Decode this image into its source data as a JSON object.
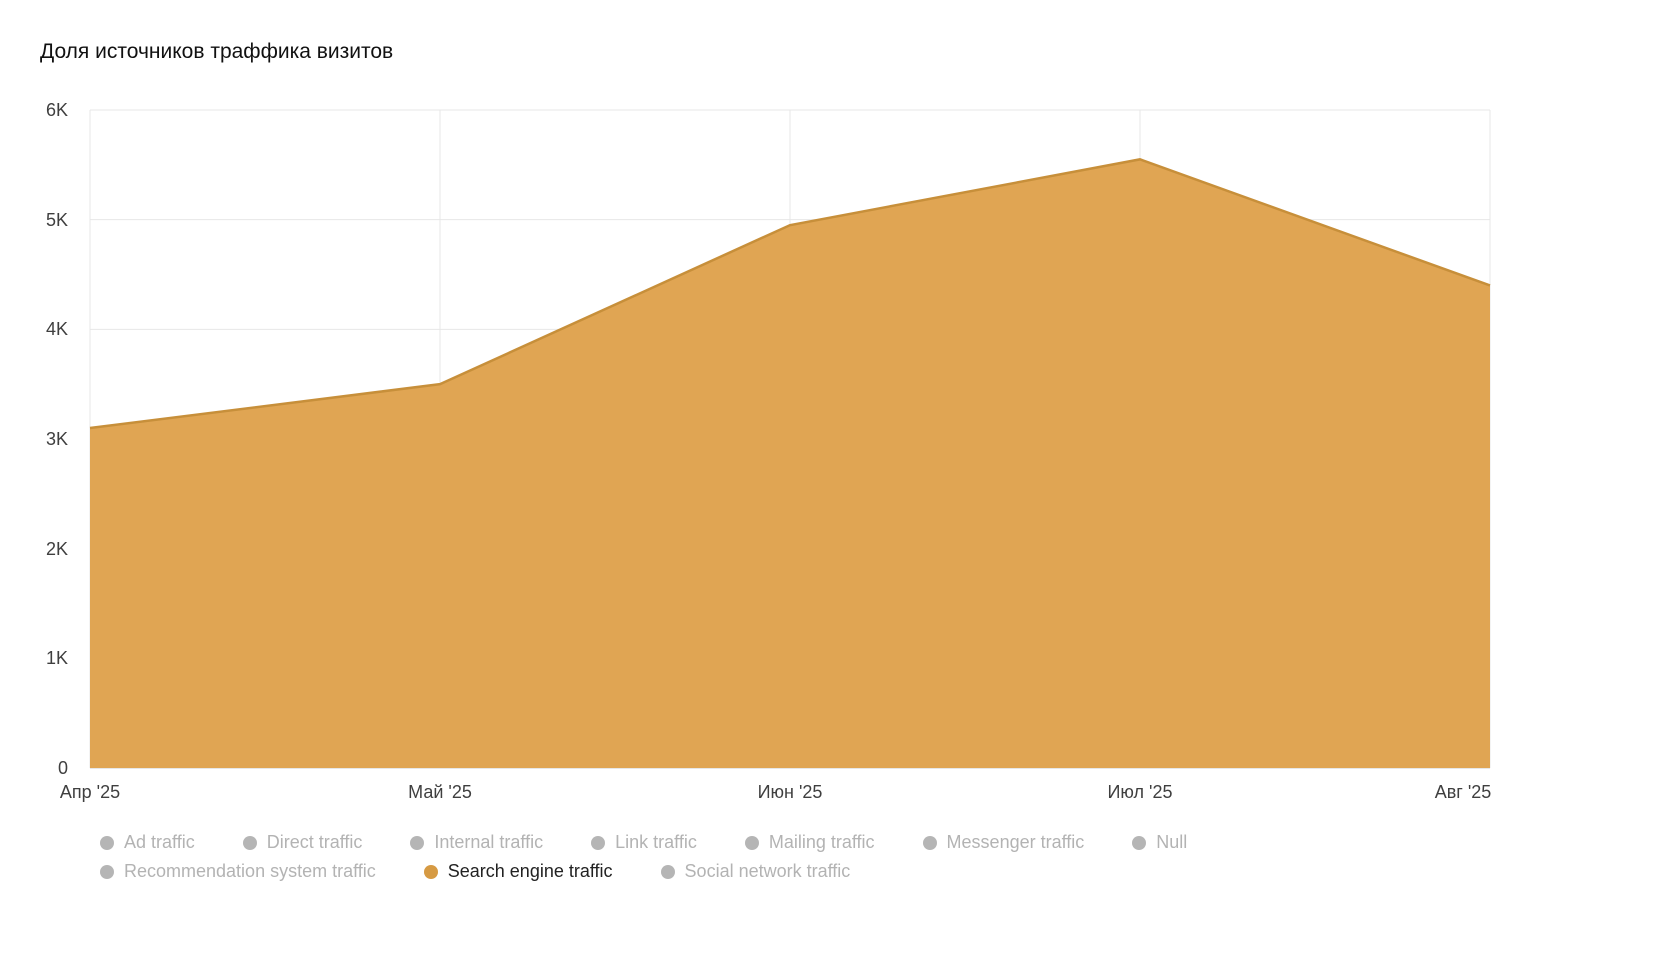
{
  "title": "Доля источников траффика визитов",
  "chart_data": {
    "type": "area",
    "title": "Доля источников траффика визитов",
    "categories": [
      "Апр '25",
      "Май '25",
      "Июн '25",
      "Июл '25",
      "Авг '25"
    ],
    "series": [
      {
        "name": "Search engine traffic",
        "values": [
          3100,
          3500,
          4950,
          5550,
          4400
        ]
      }
    ],
    "xlabel": "",
    "ylabel": "",
    "ylim": [
      0,
      6000
    ],
    "yticks": [
      "6K",
      "5K",
      "4K",
      "3K",
      "2K",
      "1K",
      "0"
    ],
    "ytick_values": [
      6000,
      5000,
      4000,
      3000,
      2000,
      1000,
      0
    ],
    "grid": true,
    "legend_position": "bottom",
    "area_fill": "#e0a553",
    "area_stroke": "#c78f3a",
    "grid_color": "#e7e7e7",
    "axis_line_color": "#cfcfcf"
  },
  "legend": {
    "items": [
      {
        "label": "Ad traffic",
        "enabled": false
      },
      {
        "label": "Direct traffic",
        "enabled": false
      },
      {
        "label": "Internal traffic",
        "enabled": false
      },
      {
        "label": "Link traffic",
        "enabled": false
      },
      {
        "label": "Mailing traffic",
        "enabled": false
      },
      {
        "label": "Messenger traffic",
        "enabled": false
      },
      {
        "label": "Null",
        "enabled": false
      },
      {
        "label": "Recommendation system traffic",
        "enabled": false
      },
      {
        "label": "Search engine traffic",
        "enabled": true,
        "color": "#d69a43"
      },
      {
        "label": "Social network traffic",
        "enabled": false
      }
    ],
    "disabled_color": "#b5b5b5"
  }
}
